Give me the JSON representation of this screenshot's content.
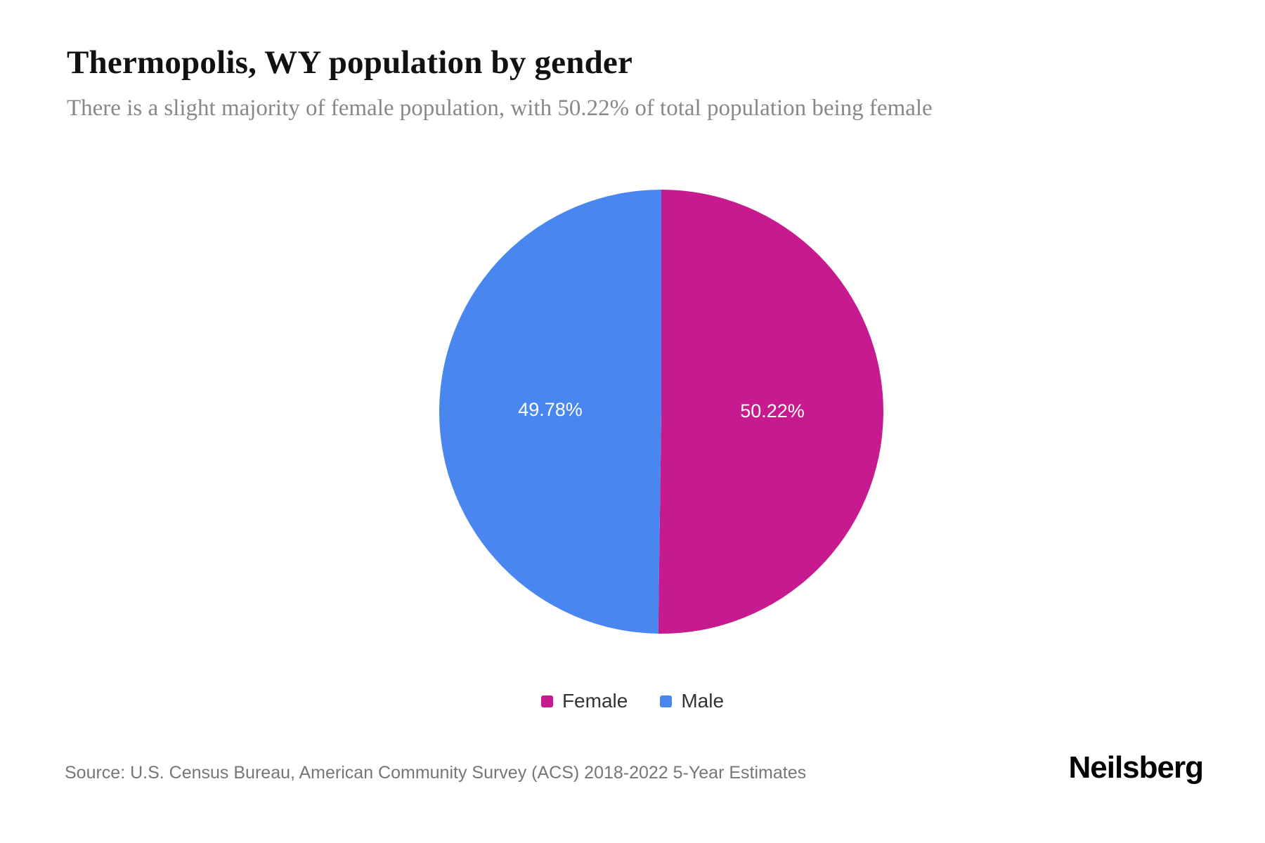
{
  "page": {
    "title": "Thermopolis, WY population by gender",
    "subtitle": "There is a slight majority of female population, with 50.22% of total population being female",
    "source": "Source: U.S. Census Bureau, American Community Survey (ACS) 2018-2022 5-Year Estimates",
    "brand": "Neilsberg"
  },
  "chart_data": {
    "type": "pie",
    "title": "Thermopolis, WY population by gender",
    "categories": [
      "Female",
      "Male"
    ],
    "values": [
      50.22,
      49.78
    ],
    "slice_labels": [
      "50.22%",
      "49.78%"
    ],
    "colors": [
      "#C81A8F",
      "#4A86F0"
    ],
    "slice_label_color": "#ffffff",
    "start_angle_deg": 0,
    "direction": "clockwise",
    "legend_position": "bottom",
    "legend": [
      "Female",
      "Male"
    ]
  }
}
